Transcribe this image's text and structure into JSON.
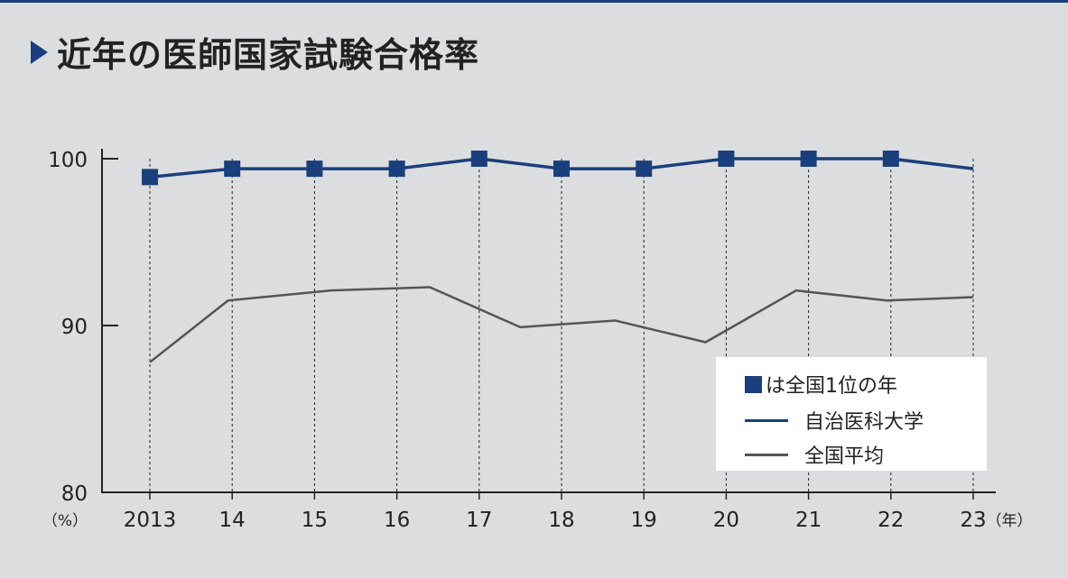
{
  "title": "近年の医師国家試験合格率",
  "colors": {
    "accent": "#1b3f7c",
    "national": "#555555",
    "background": "#dcdddf"
  },
  "legend": {
    "marker_note": "は全国1位の年",
    "series_school": "自治医科大学",
    "series_national": "全国平均"
  },
  "chart_data": {
    "type": "line",
    "title": "近年の医師国家試験合格率",
    "y_unit_label": "（%）",
    "x_unit_label": "（年）",
    "ylim": [
      80,
      100
    ],
    "y_ticks": [
      80,
      90,
      100
    ],
    "categories": [
      "2013",
      "14",
      "15",
      "16",
      "17",
      "18",
      "19",
      "20",
      "21",
      "22",
      "23"
    ],
    "grid": "dashed vertical lines at each year",
    "legend_placement": "bottom-right",
    "series": [
      {
        "name": "自治医科大学",
        "color": "#1b3f7c",
        "values": [
          98.9,
          99.4,
          99.4,
          99.4,
          100,
          99.4,
          99.4,
          100,
          100,
          100,
          99.4
        ],
        "rank1_marker": [
          true,
          true,
          true,
          true,
          true,
          true,
          true,
          true,
          true,
          true,
          false
        ]
      },
      {
        "name": "全国平均",
        "color": "#555555",
        "points": [
          {
            "x": 2013,
            "y": 87.8
          },
          {
            "x": 2013.95,
            "y": 91.5
          },
          {
            "x": 2015.2,
            "y": 92.1
          },
          {
            "x": 2016.4,
            "y": 92.3
          },
          {
            "x": 2017.5,
            "y": 89.9
          },
          {
            "x": 2018.65,
            "y": 90.3
          },
          {
            "x": 2019.75,
            "y": 89.0
          },
          {
            "x": 2020.85,
            "y": 92.1
          },
          {
            "x": 2021.95,
            "y": 91.5
          },
          {
            "x": 2023,
            "y": 91.7
          }
        ]
      }
    ]
  }
}
